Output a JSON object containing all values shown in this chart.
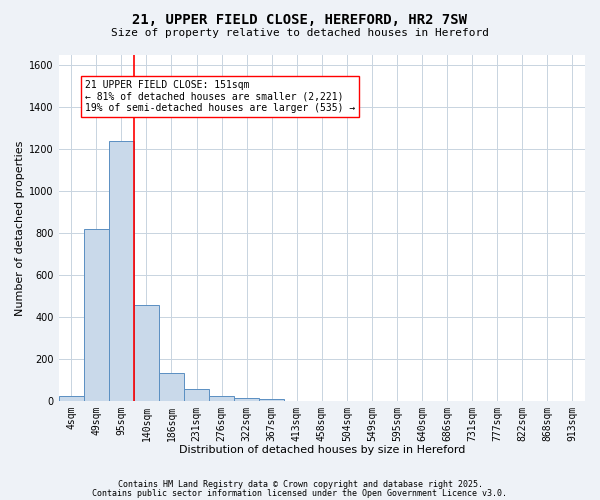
{
  "title": "21, UPPER FIELD CLOSE, HEREFORD, HR2 7SW",
  "subtitle": "Size of property relative to detached houses in Hereford",
  "xlabel": "Distribution of detached houses by size in Hereford",
  "ylabel": "Number of detached properties",
  "bar_labels": [
    "4sqm",
    "49sqm",
    "95sqm",
    "140sqm",
    "186sqm",
    "231sqm",
    "276sqm",
    "322sqm",
    "367sqm",
    "413sqm",
    "458sqm",
    "504sqm",
    "549sqm",
    "595sqm",
    "640sqm",
    "686sqm",
    "731sqm",
    "777sqm",
    "822sqm",
    "868sqm",
    "913sqm"
  ],
  "bar_values": [
    22,
    820,
    1240,
    455,
    130,
    55,
    24,
    14,
    10,
    0,
    0,
    0,
    0,
    0,
    0,
    0,
    0,
    0,
    0,
    0,
    0
  ],
  "bar_color": "#c9d9ea",
  "bar_edge_color": "#5a8fc2",
  "red_line_index": 3,
  "annotation_text": "21 UPPER FIELD CLOSE: 151sqm\n← 81% of detached houses are smaller (2,221)\n19% of semi-detached houses are larger (535) →",
  "ylim": [
    0,
    1650
  ],
  "yticks": [
    0,
    200,
    400,
    600,
    800,
    1000,
    1200,
    1400,
    1600
  ],
  "footer1": "Contains HM Land Registry data © Crown copyright and database right 2025.",
  "footer2": "Contains public sector information licensed under the Open Government Licence v3.0.",
  "background_color": "#eef2f7",
  "plot_bg_color": "#ffffff",
  "grid_color": "#c8d4e0",
  "title_fontsize": 10,
  "subtitle_fontsize": 8,
  "axis_label_fontsize": 8,
  "tick_fontsize": 7,
  "annotation_fontsize": 7,
  "footer_fontsize": 6
}
